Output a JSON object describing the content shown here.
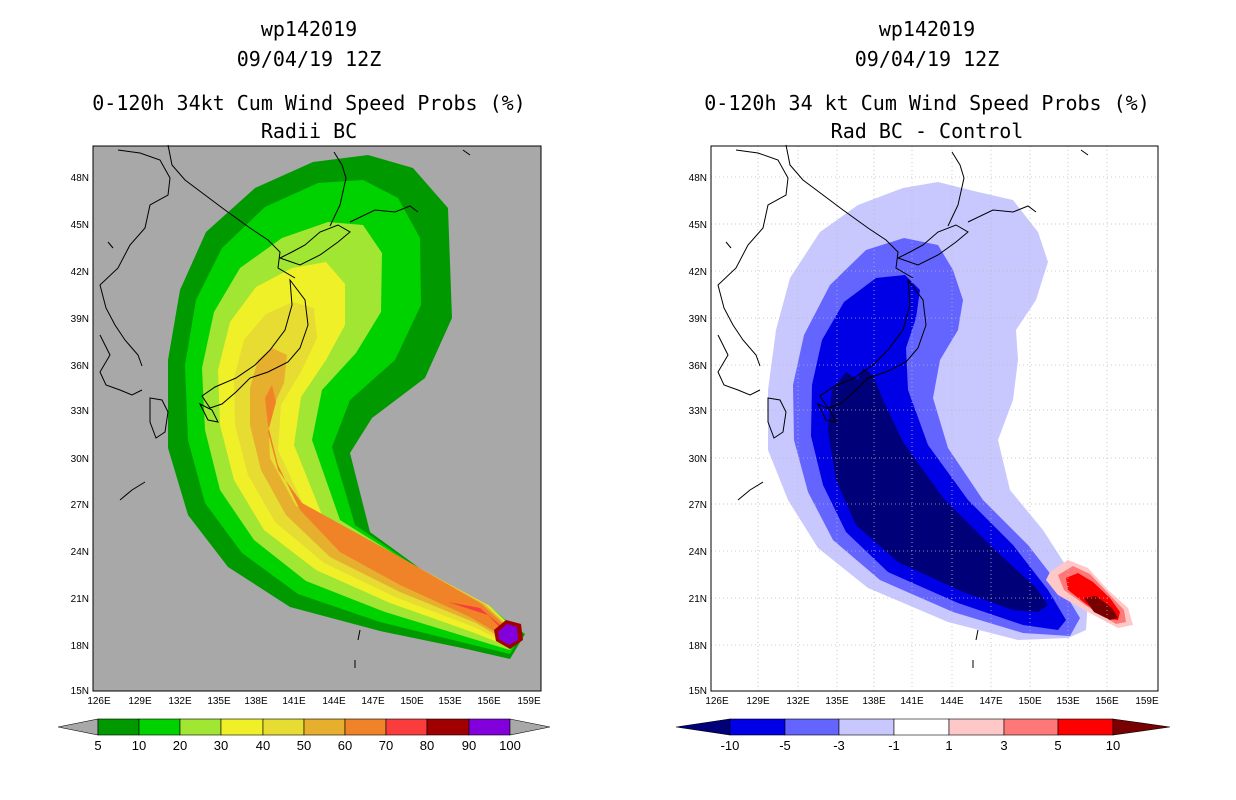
{
  "panels": [
    {
      "id": "radii-bc",
      "title_lines": [
        "wp142019",
        "09/04/19 12Z",
        "0-120h 34kt Cum Wind Speed Probs (%)",
        "Radii BC"
      ],
      "background": "#a8a8a8",
      "lat_labels": [
        "48N",
        "45N",
        "42N",
        "39N",
        "36N",
        "33N",
        "30N",
        "27N",
        "24N",
        "21N",
        "18N",
        "15N"
      ],
      "lon_labels": [
        "126E",
        "129E",
        "132E",
        "135E",
        "138E",
        "141E",
        "144E",
        "147E",
        "150E",
        "153E",
        "156E",
        "159E"
      ],
      "colorbar": {
        "colors": [
          "#009a00",
          "#00d200",
          "#a0e632",
          "#f0f028",
          "#e6dc32",
          "#e6af2d",
          "#f08228",
          "#fa3c3c",
          "#a00000",
          "#8200dc"
        ],
        "labels": [
          "5",
          "10",
          "20",
          "30",
          "40",
          "50",
          "60",
          "70",
          "80",
          "90",
          "100"
        ],
        "end_left": "#a8a8a8",
        "end_right": "#a8a8a8"
      }
    },
    {
      "id": "rad-bc-control",
      "title_lines": [
        "wp142019",
        "09/04/19 12Z",
        "0-120h 34 kt Cum Wind Speed Probs (%)",
        "Rad BC - Control"
      ],
      "background": "#ffffff",
      "lat_labels": [
        "48N",
        "45N",
        "42N",
        "39N",
        "36N",
        "33N",
        "30N",
        "27N",
        "24N",
        "21N",
        "18N",
        "15N"
      ],
      "lon_labels": [
        "126E",
        "129E",
        "132E",
        "135E",
        "138E",
        "141E",
        "144E",
        "147E",
        "150E",
        "153E",
        "156E",
        "159E"
      ],
      "colorbar": {
        "colors": [
          "#0000e6",
          "#6464ff",
          "#c8c8ff",
          "#ffffff",
          "#ffc8c8",
          "#ff7878",
          "#ff0000"
        ],
        "labels": [
          "-10",
          "-5",
          "-3",
          "-1",
          "1",
          "3",
          "5",
          "10"
        ],
        "end_left": "#000078",
        "end_right": "#780000"
      }
    }
  ]
}
